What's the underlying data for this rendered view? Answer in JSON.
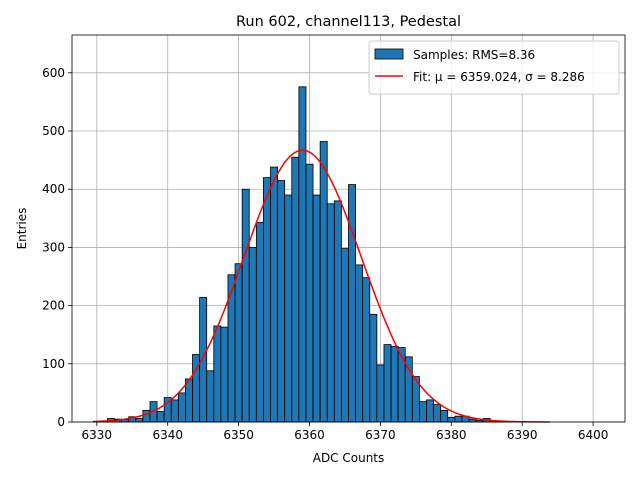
{
  "chart_data": {
    "type": "bar",
    "title": "Run 602, channel113, Pedestal",
    "xlabel": "ADC Counts",
    "ylabel": "Entries",
    "xlim": [
      6326.5,
      6404.5
    ],
    "ylim": [
      0,
      665
    ],
    "xticks": [
      6330,
      6340,
      6350,
      6360,
      6370,
      6380,
      6390,
      6400
    ],
    "yticks": [
      0,
      100,
      200,
      300,
      400,
      500,
      600
    ],
    "grid": true,
    "legend_position": "top-right",
    "bin_width": 1,
    "histogram": {
      "name": "Samples: RMS=8.36",
      "color": "#1f77b4",
      "edgecolor": "#000000",
      "bin_centers": [
        6330,
        6331,
        6332,
        6333,
        6334,
        6335,
        6336,
        6337,
        6338,
        6339,
        6340,
        6341,
        6342,
        6343,
        6344,
        6345,
        6346,
        6347,
        6348,
        6349,
        6350,
        6351,
        6352,
        6353,
        6354,
        6355,
        6356,
        6357,
        6358,
        6359,
        6360,
        6361,
        6362,
        6363,
        6364,
        6365,
        6366,
        6367,
        6368,
        6369,
        6370,
        6371,
        6372,
        6373,
        6374,
        6375,
        6376,
        6377,
        6378,
        6379,
        6380,
        6381,
        6382,
        6383,
        6384,
        6385,
        6386,
        6387,
        6388,
        6389,
        6390,
        6391,
        6392,
        6393,
        6394
      ],
      "values": [
        1,
        2,
        6,
        5,
        4,
        9,
        6,
        20,
        35,
        18,
        42,
        38,
        50,
        74,
        116,
        214,
        88,
        165,
        163,
        253,
        272,
        400,
        300,
        343,
        420,
        438,
        415,
        390,
        455,
        576,
        443,
        390,
        482,
        375,
        380,
        298,
        408,
        270,
        248,
        185,
        98,
        133,
        130,
        128,
        112,
        78,
        35,
        38,
        30,
        20,
        8,
        10,
        10,
        5,
        3,
        6,
        2,
        1,
        1,
        0,
        0,
        0,
        0,
        0,
        0
      ]
    },
    "fit": {
      "name": "Fit: μ = 6359.024, σ = 8.286",
      "color": "#ff0000",
      "mu": 6359.024,
      "sigma": 8.286,
      "amplitude": 467,
      "x_range": [
        6329.5,
        6393.9
      ]
    }
  }
}
